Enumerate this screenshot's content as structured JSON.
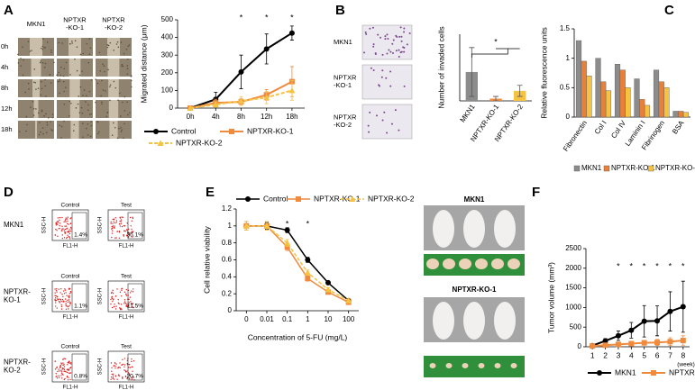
{
  "panel_labels": [
    "A",
    "B",
    "C",
    "D",
    "E",
    "F"
  ],
  "migration_images": {
    "columns": [
      [
        "MKN1"
      ],
      [
        "NPTXR",
        "-KO-1"
      ],
      [
        "NPTXR",
        "-KO-2"
      ]
    ],
    "rows": [
      "0h",
      "4h",
      "8h",
      "12h",
      "18h"
    ]
  },
  "invasion_images": {
    "rows": [
      [
        "MKN1"
      ],
      [
        "NPTXR",
        "-KO-1"
      ],
      [
        "NPTXR",
        "-KO-2"
      ]
    ]
  },
  "flow_cytometry": {
    "rows": [
      [
        "MKN1"
      ],
      [
        "NPTXR-",
        "KO-1"
      ],
      [
        "NPTXR-",
        "KO-2"
      ]
    ],
    "columns": [
      "Control",
      "Test"
    ],
    "x_label": "FL1-H",
    "y_label": "SSC-H",
    "percentages": [
      [
        "1.4%",
        "35.1%"
      ],
      [
        "1.1%",
        "11.5%"
      ],
      [
        "0.8%",
        "20.7%"
      ]
    ]
  },
  "xenograft_images": {
    "groups": [
      "MKN1",
      "NPTXR-KO-1"
    ]
  },
  "chart_data": [
    {
      "type": "line",
      "categories": [
        "0h",
        "4h",
        "8h",
        "12h",
        "18h"
      ],
      "ylabel": "Migrated distance (μm)",
      "ylim": [
        0,
        500
      ],
      "yticks": [
        0,
        100,
        200,
        300,
        400,
        500
      ],
      "series": [
        {
          "name": "Control",
          "color": "#000000",
          "marker": "circle",
          "values": [
            0,
            50,
            205,
            335,
            425
          ],
          "errors": [
            0,
            40,
            95,
            85,
            40
          ]
        },
        {
          "name": "NPTXR-KO-1",
          "color": "#f08a3c",
          "marker": "square",
          "values": [
            0,
            30,
            35,
            75,
            150
          ],
          "errors": [
            0,
            20,
            20,
            30,
            85
          ]
        },
        {
          "name": "NPTXR-KO-2",
          "color": "#f5c242",
          "marker": "triangle",
          "dashed": true,
          "values": [
            0,
            20,
            40,
            60,
            100
          ],
          "errors": [
            0,
            15,
            25,
            35,
            55
          ]
        }
      ],
      "significance": [
        null,
        null,
        "*",
        "*",
        "*"
      ]
    },
    {
      "type": "bar",
      "categories": [
        "MKN1",
        "NPTXR-KO-1",
        "NPTXR-KO-2"
      ],
      "values": [
        13,
        1,
        4.5
      ],
      "errors": [
        11,
        1,
        2.5
      ],
      "colors": [
        "#8c8c8c",
        "#f08a3c",
        "#f5c242"
      ],
      "ylabel": "Number of invaded cells",
      "ylim": [
        0,
        30
      ],
      "significance": "*"
    },
    {
      "type": "bar",
      "categories": [
        "Fibronectin",
        "Col I",
        "Col IV",
        "Laminin I",
        "Fibrinogen",
        "BSA"
      ],
      "ylabel": "Relative fluorescence units",
      "ylim": [
        0,
        1.5
      ],
      "yticks": [
        0,
        0.5,
        1,
        1.5
      ],
      "series": [
        {
          "name": "MKN1",
          "color": "#8c8c8c",
          "values": [
            1.3,
            1.0,
            0.9,
            0.65,
            0.8,
            0.1
          ]
        },
        {
          "name": "NPTXR-KO-1",
          "color": "#e8803a",
          "values": [
            0.95,
            0.6,
            0.8,
            0.3,
            0.6,
            0.1
          ]
        },
        {
          "name": "NPTXR-KO-2",
          "color": "#f5c242",
          "values": [
            0.7,
            0.45,
            0.5,
            0.2,
            0.5,
            0.08
          ]
        }
      ]
    },
    {
      "type": "line",
      "categories": [
        "0",
        "0.01",
        "0.1",
        "1",
        "10",
        "100"
      ],
      "xlabel": "Concentration of 5-FU (mg/L)",
      "ylabel": "Cell relative viability",
      "ylim": [
        0,
        1.2
      ],
      "yticks": [
        0,
        0.2,
        0.4,
        0.6,
        0.8,
        1,
        1.2
      ],
      "series": [
        {
          "name": "Control",
          "color": "#000000",
          "marker": "circle",
          "values": [
            1,
            1,
            0.95,
            0.6,
            0.33,
            0.12
          ],
          "errors": [
            0.05,
            0.04,
            0.03,
            0.03,
            0.02,
            0.02
          ]
        },
        {
          "name": "NPTXR-KO-1",
          "color": "#f08a3c",
          "marker": "square",
          "values": [
            1,
            1,
            0.75,
            0.38,
            0.22,
            0.1
          ],
          "errors": [
            0.05,
            0.05,
            0.04,
            0.03,
            0.02,
            0.02
          ]
        },
        {
          "name": "NPTXR-KO-2",
          "color": "#f5c242",
          "marker": "triangle",
          "dashed": true,
          "values": [
            1,
            1,
            0.8,
            0.45,
            0.25,
            0.12
          ],
          "errors": [
            0.05,
            0.05,
            0.04,
            0.03,
            0.02,
            0.02
          ]
        }
      ],
      "significance": [
        null,
        null,
        "*",
        "*",
        null,
        null
      ]
    },
    {
      "type": "line",
      "x": [
        1,
        2,
        3,
        4,
        5,
        6,
        7,
        8
      ],
      "xlim": [
        0.5,
        8.5
      ],
      "xticks": [
        1,
        2,
        3,
        4,
        5,
        6,
        7,
        8
      ],
      "xlabel": "(week)",
      "ylabel": "Tumor volume (mm³)",
      "ylim": [
        0,
        2500
      ],
      "yticks": [
        0,
        500,
        1000,
        1500,
        2000,
        2500
      ],
      "series": [
        {
          "name": "MKN1",
          "color": "#000000",
          "marker": "circle",
          "values": [
            30,
            150,
            280,
            420,
            650,
            660,
            900,
            1020
          ],
          "errors": [
            20,
            60,
            120,
            200,
            400,
            380,
            500,
            650
          ]
        },
        {
          "name": "NPTXR-KO-1",
          "color": "#f08a3c",
          "marker": "square",
          "values": [
            20,
            40,
            60,
            80,
            100,
            110,
            130,
            160
          ],
          "errors": [
            10,
            20,
            30,
            40,
            60,
            80,
            100,
            120
          ]
        }
      ],
      "significance": [
        null,
        null,
        "*",
        "*",
        "*",
        "*",
        "*",
        "*"
      ]
    }
  ]
}
